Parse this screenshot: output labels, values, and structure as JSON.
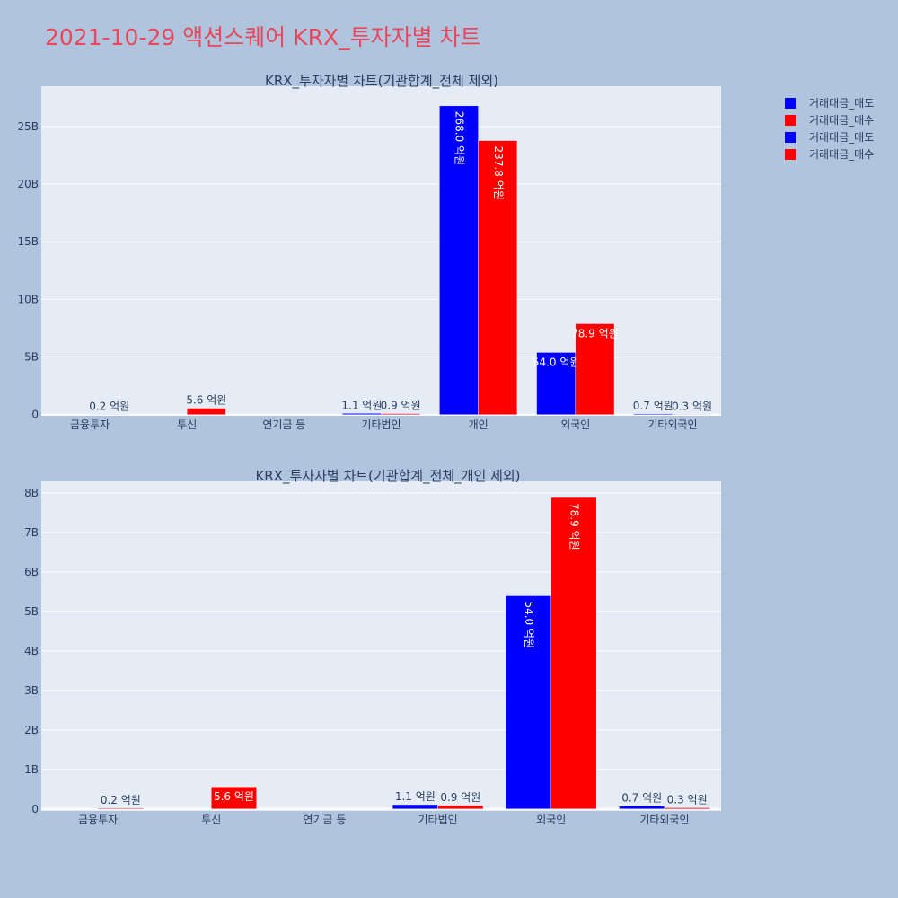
{
  "page_title": "2021-10-29 액션스퀘어 KRX_투자자별 차트",
  "colors": {
    "sell": "#0000ff",
    "buy": "#ff0000",
    "plot_bg": "#e5ecf6",
    "page_bg": "#b0c4de"
  },
  "legend": [
    {
      "label": "거래대금_매도",
      "color": "#0000ff"
    },
    {
      "label": "거래대금_매수",
      "color": "#ff0000"
    },
    {
      "label": "거래대금_매도",
      "color": "#0000ff"
    },
    {
      "label": "거래대금_매수",
      "color": "#ff0000"
    }
  ],
  "chart_data": [
    {
      "type": "bar",
      "title": "KRX_투자자별 차트(기관합계_전체 제외)",
      "xlabel": "",
      "ylabel": "",
      "categories": [
        "금융투자",
        "투신",
        "연기금 등",
        "기타법인",
        "개인",
        "외국인",
        "기타외국인"
      ],
      "ylim": [
        -0.1,
        28.5
      ],
      "y_unit": "B",
      "y_ticks": [
        0,
        5,
        10,
        15,
        20,
        25
      ],
      "y_tick_labels": [
        "0",
        "5B",
        "10B",
        "15B",
        "20B",
        "25B"
      ],
      "grid": true,
      "series": [
        {
          "name": "거래대금_매도",
          "color": "#0000ff",
          "values": [
            0,
            0,
            0,
            0.11,
            26.8,
            5.4,
            0.07
          ],
          "labels": [
            "",
            "",
            "",
            "1.1 억원",
            "268.0 억원",
            "54.0 억원",
            "0.7 억원"
          ]
        },
        {
          "name": "거래대금_매수",
          "color": "#ff0000",
          "values": [
            0.02,
            0.56,
            0,
            0.09,
            23.78,
            7.89,
            0.03
          ],
          "labels": [
            "0.2 억원",
            "5.6 억원",
            "",
            "0.9 억원",
            "237.8 억원",
            "78.9 억원",
            "0.3 억원"
          ]
        }
      ]
    },
    {
      "type": "bar",
      "title": "KRX_투자자별 차트(기관합계_전체_개인 제외)",
      "xlabel": "",
      "ylabel": "",
      "categories": [
        "금융투자",
        "투신",
        "연기금 등",
        "기타법인",
        "외국인",
        "기타외국인"
      ],
      "ylim": [
        -0.05,
        8.3
      ],
      "y_unit": "B",
      "y_ticks": [
        0,
        1,
        2,
        3,
        4,
        5,
        6,
        7,
        8
      ],
      "y_tick_labels": [
        "0",
        "1B",
        "2B",
        "3B",
        "4B",
        "5B",
        "6B",
        "7B",
        "8B"
      ],
      "grid": true,
      "series": [
        {
          "name": "거래대금_매도",
          "color": "#0000ff",
          "values": [
            0,
            0,
            0,
            0.11,
            5.4,
            0.07
          ],
          "labels": [
            "",
            "",
            "",
            "1.1 억원",
            "54.0 억원",
            "0.7 억원"
          ]
        },
        {
          "name": "거래대금_매수",
          "color": "#ff0000",
          "values": [
            0.02,
            0.56,
            0,
            0.09,
            7.89,
            0.03
          ],
          "labels": [
            "0.2 억원",
            "5.6 억원",
            "",
            "0.9 억원",
            "78.9 억원",
            "0.3 억원"
          ]
        }
      ]
    }
  ]
}
